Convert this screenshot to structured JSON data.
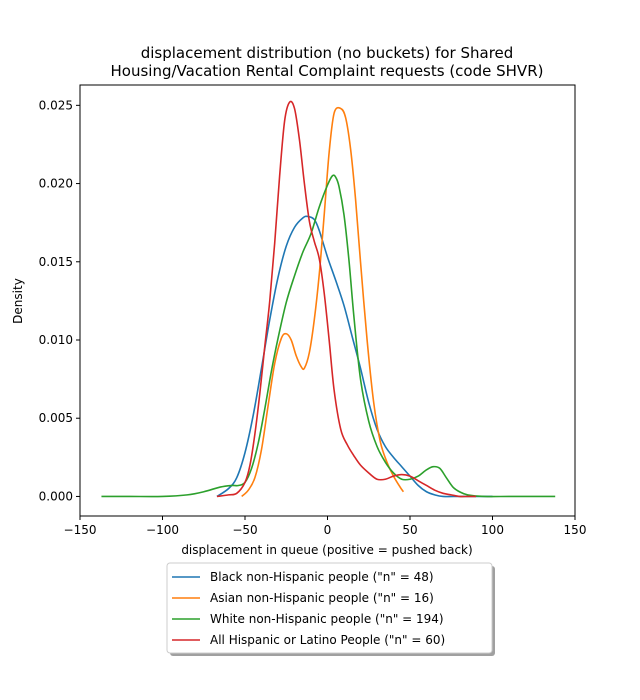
{
  "chart_data": {
    "type": "line",
    "title_lines": [
      "displacement distribution (no buckets)  for Shared",
      "Housing/Vacation Rental Complaint requests (code SHVR)"
    ],
    "xlabel": "displacement in queue (positive = pushed back)",
    "ylabel": "Density",
    "xlim": [
      -150,
      150
    ],
    "ylim": [
      -0.00125,
      0.0263
    ],
    "xticks": [
      -150,
      -100,
      -50,
      0,
      50,
      100,
      150
    ],
    "xtick_labels": [
      "−150",
      "−100",
      "−50",
      "0",
      "50",
      "100",
      "150"
    ],
    "yticks": [
      0.0,
      0.005,
      0.01,
      0.015,
      0.02,
      0.025
    ],
    "ytick_labels": [
      "0.000",
      "0.005",
      "0.010",
      "0.015",
      "0.020",
      "0.025"
    ],
    "grid": false,
    "legend_position": "below plot, centered",
    "series": [
      {
        "name": "Black non-Hispanic people (\"n\" = 48)",
        "color": "#1f77b4",
        "x": [
          -67,
          -60,
          -55,
          -50,
          -45,
          -40,
          -35,
          -30,
          -25,
          -20,
          -15,
          -12,
          -8,
          -5,
          0,
          5,
          10,
          15,
          20,
          25,
          30,
          35,
          40,
          45,
          50,
          55,
          60,
          65,
          70,
          80,
          90,
          100
        ],
        "y": [
          0.0,
          0.0005,
          0.0012,
          0.0028,
          0.0052,
          0.0082,
          0.0113,
          0.014,
          0.016,
          0.0172,
          0.0178,
          0.0179,
          0.0177,
          0.017,
          0.0153,
          0.0138,
          0.0122,
          0.0102,
          0.0082,
          0.006,
          0.0043,
          0.0032,
          0.0025,
          0.0019,
          0.0013,
          0.0007,
          0.0003,
          0.0001,
          0.0,
          0.0,
          0.0,
          0.0
        ]
      },
      {
        "name": "Asian non-Hispanic people (\"n\" = 16)",
        "color": "#ff7f0e",
        "x": [
          -52,
          -48,
          -44,
          -40,
          -36,
          -32,
          -28,
          -25,
          -22,
          -19,
          -16,
          -14,
          -11,
          -8,
          -5,
          -2,
          1,
          4,
          8,
          11,
          14,
          17,
          20,
          24,
          28,
          32,
          36,
          40,
          44,
          46
        ],
        "y": [
          0.0,
          0.0004,
          0.0012,
          0.003,
          0.0058,
          0.0085,
          0.0101,
          0.0104,
          0.01,
          0.009,
          0.0083,
          0.0082,
          0.0092,
          0.0113,
          0.0142,
          0.018,
          0.022,
          0.0245,
          0.0248,
          0.0242,
          0.0222,
          0.019,
          0.015,
          0.01,
          0.006,
          0.0035,
          0.0022,
          0.0013,
          0.0006,
          0.0003
        ]
      },
      {
        "name": "White non-Hispanic people (\"n\" = 194)",
        "color": "#2ca02c",
        "x": [
          -137,
          -120,
          -100,
          -85,
          -75,
          -65,
          -58,
          -54,
          -50,
          -46,
          -42,
          -38,
          -34,
          -30,
          -25,
          -20,
          -15,
          -10,
          -5,
          0,
          3,
          5,
          7,
          10,
          13,
          16,
          20,
          25,
          30,
          35,
          40,
          45,
          50,
          55,
          60,
          64,
          68,
          72,
          76,
          80,
          85,
          95,
          110,
          125,
          138
        ],
        "y": [
          0.0,
          0.0,
          0.0,
          0.0001,
          0.0003,
          0.0006,
          0.0007,
          0.0007,
          0.0009,
          0.0018,
          0.0034,
          0.0056,
          0.008,
          0.0101,
          0.0124,
          0.0141,
          0.0156,
          0.0168,
          0.0185,
          0.0199,
          0.0205,
          0.0204,
          0.0198,
          0.018,
          0.0151,
          0.0115,
          0.0075,
          0.0048,
          0.0032,
          0.0022,
          0.0015,
          0.0011,
          0.0011,
          0.0013,
          0.0017,
          0.0019,
          0.0018,
          0.0012,
          0.0006,
          0.0003,
          0.0001,
          0.0,
          0.0,
          0.0,
          0.0
        ]
      },
      {
        "name": "All Hispanic or Latino People (\"n\" = 60)",
        "color": "#d62728",
        "x": [
          -67,
          -60,
          -55,
          -50,
          -47,
          -44,
          -41,
          -38,
          -35,
          -32,
          -29,
          -26,
          -23,
          -20,
          -17,
          -14,
          -11,
          -8,
          -5,
          -2,
          1,
          4,
          8,
          12,
          16,
          20,
          25,
          30,
          35,
          40,
          45,
          50,
          55,
          60,
          65,
          70,
          75,
          80,
          85,
          90
        ],
        "y": [
          0.0,
          0.0001,
          0.0002,
          0.0009,
          0.002,
          0.004,
          0.0066,
          0.0096,
          0.0125,
          0.0162,
          0.0205,
          0.024,
          0.0252,
          0.0248,
          0.0228,
          0.02,
          0.0176,
          0.0163,
          0.0152,
          0.013,
          0.01,
          0.0068,
          0.0043,
          0.0033,
          0.0026,
          0.002,
          0.0015,
          0.0011,
          0.0011,
          0.0013,
          0.0014,
          0.0013,
          0.001,
          0.0007,
          0.0004,
          0.0002,
          0.0001,
          0.0,
          0.0,
          0.0
        ]
      }
    ]
  }
}
